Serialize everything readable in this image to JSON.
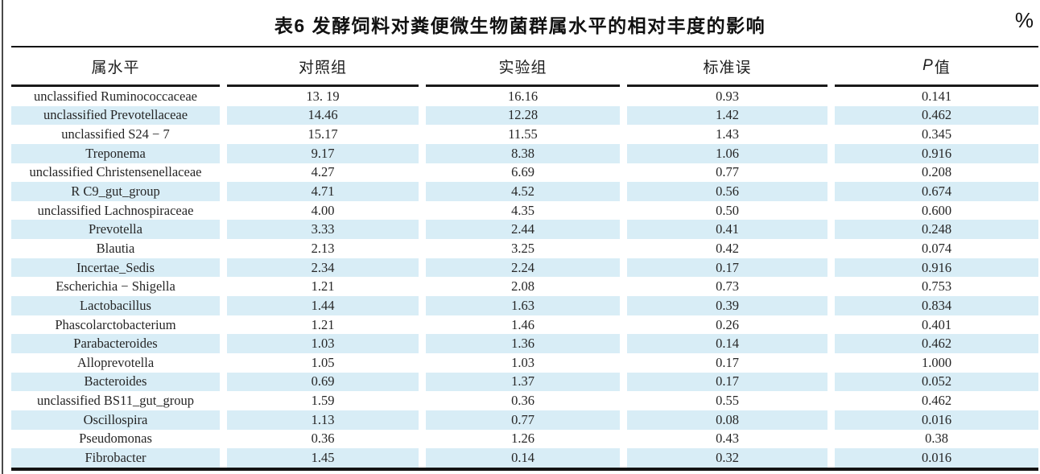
{
  "chart_data": {
    "type": "table",
    "title": "表6 发酵饲料对粪便微生物菌群属水平的相对丰度的影响",
    "unit": "%",
    "columns": [
      "属水平",
      "对照组",
      "实验组",
      "标准误",
      "P值"
    ],
    "header_p": {
      "italic": "P",
      "rest": "值"
    },
    "rows": [
      [
        "unclassified Ruminococcaceae",
        "13. 19",
        "16.16",
        "0.93",
        "0.141"
      ],
      [
        "unclassified Prevotellaceae",
        "14.46",
        "12.28",
        "1.42",
        "0.462"
      ],
      [
        "unclassified S24 − 7",
        "15.17",
        "11.55",
        "1.43",
        "0.345"
      ],
      [
        "Treponema",
        "9.17",
        "8.38",
        "1.06",
        "0.916"
      ],
      [
        "unclassified Christensenellaceae",
        "4.27",
        "6.69",
        "0.77",
        "0.208"
      ],
      [
        "R C9_gut_group",
        "4.71",
        "4.52",
        "0.56",
        "0.674"
      ],
      [
        "unclassified Lachnospiraceae",
        "4.00",
        "4.35",
        "0.50",
        "0.600"
      ],
      [
        "Prevotella",
        "3.33",
        "2.44",
        "0.41",
        "0.248"
      ],
      [
        "Blautia",
        "2.13",
        "3.25",
        "0.42",
        "0.074"
      ],
      [
        "Incertae_Sedis",
        "2.34",
        "2.24",
        "0.17",
        "0.916"
      ],
      [
        "Escherichia − Shigella",
        "1.21",
        "2.08",
        "0.73",
        "0.753"
      ],
      [
        "Lactobacillus",
        "1.44",
        "1.63",
        "0.39",
        "0.834"
      ],
      [
        "Phascolarctobacterium",
        "1.21",
        "1.46",
        "0.26",
        "0.401"
      ],
      [
        "Parabacteroides",
        "1.03",
        "1.36",
        "0.14",
        "0.462"
      ],
      [
        "Alloprevotella",
        "1.05",
        "1.03",
        "0.17",
        "1.000"
      ],
      [
        "Bacteroides",
        "0.69",
        "1.37",
        "0.17",
        "0.052"
      ],
      [
        "unclassified BS11_gut_group",
        "1.59",
        "0.36",
        "0.55",
        "0.462"
      ],
      [
        "Oscillospira",
        "1.13",
        "0.77",
        "0.08",
        "0.016"
      ],
      [
        "Pseudomonas",
        "0.36",
        "1.26",
        "0.43",
        "0.38"
      ],
      [
        "Fibrobacter",
        "1.45",
        "0.14",
        "0.32",
        "0.016"
      ]
    ],
    "layout": {
      "stripe_pattern": "even-rows",
      "colors": {
        "stripe": "#d8edf6",
        "rule": "#141414",
        "text": "#262626"
      }
    }
  }
}
